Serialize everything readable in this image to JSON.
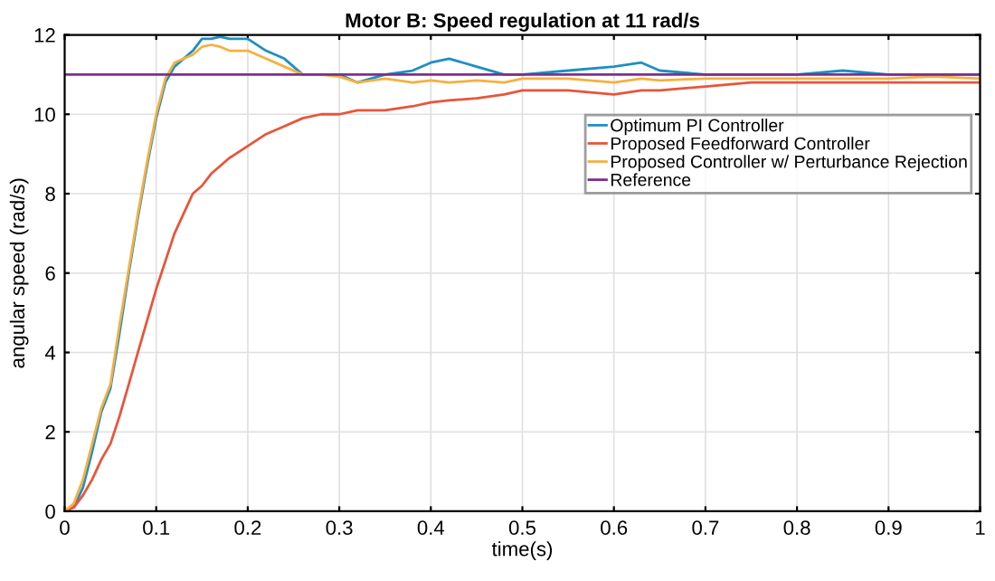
{
  "chart_data": {
    "type": "line",
    "title": "Motor B: Speed regulation at 11 rad/s",
    "xlabel": "time(s)",
    "ylabel": "angular speed (rad/s)",
    "x": [
      0,
      0.01,
      0.02,
      0.03,
      0.04,
      0.05,
      0.06,
      0.07,
      0.08,
      0.09,
      0.1,
      0.11,
      0.12,
      0.13,
      0.14,
      0.15,
      0.16,
      0.17,
      0.18,
      0.2,
      0.22,
      0.24,
      0.26,
      0.28,
      0.3,
      0.32,
      0.35,
      0.38,
      0.4,
      0.42,
      0.45,
      0.48,
      0.5,
      0.55,
      0.6,
      0.63,
      0.65,
      0.7,
      0.75,
      0.8,
      0.85,
      0.9,
      0.95,
      1.0
    ],
    "series": [
      {
        "name": "Optimum PI Controller",
        "color": "#1f8fbf",
        "values": [
          0,
          0.1,
          0.6,
          1.5,
          2.5,
          3.1,
          4.5,
          6.0,
          7.4,
          8.7,
          9.9,
          10.8,
          11.2,
          11.4,
          11.6,
          11.9,
          11.9,
          11.95,
          11.9,
          11.9,
          11.6,
          11.4,
          11.0,
          11.0,
          11.0,
          10.8,
          11.0,
          11.1,
          11.3,
          11.4,
          11.2,
          11.0,
          11.0,
          11.1,
          11.2,
          11.3,
          11.1,
          11.0,
          11.0,
          11.0,
          11.1,
          11.0,
          11.0,
          11.0
        ]
      },
      {
        "name": "Proposed Feedforward Controller",
        "color": "#e8553a",
        "values": [
          0,
          0.1,
          0.4,
          0.8,
          1.3,
          1.7,
          2.4,
          3.2,
          4.0,
          4.8,
          5.6,
          6.3,
          7.0,
          7.5,
          8.0,
          8.2,
          8.5,
          8.7,
          8.9,
          9.2,
          9.5,
          9.7,
          9.9,
          10.0,
          10.0,
          10.1,
          10.1,
          10.2,
          10.3,
          10.35,
          10.4,
          10.5,
          10.6,
          10.6,
          10.5,
          10.6,
          10.6,
          10.7,
          10.8,
          10.8,
          10.8,
          10.8,
          10.8,
          10.8
        ]
      },
      {
        "name": "Proposed Controller w/ Perturbance Rejection",
        "color": "#f5b041",
        "values": [
          0,
          0.2,
          0.8,
          1.7,
          2.6,
          3.2,
          4.7,
          6.1,
          7.5,
          8.8,
          10.0,
          10.9,
          11.3,
          11.4,
          11.5,
          11.7,
          11.75,
          11.7,
          11.6,
          11.6,
          11.4,
          11.2,
          11.0,
          11.0,
          10.95,
          10.8,
          10.9,
          10.8,
          10.85,
          10.8,
          10.85,
          10.8,
          10.9,
          10.9,
          10.8,
          10.9,
          10.85,
          10.9,
          10.9,
          10.9,
          10.9,
          10.9,
          10.95,
          10.9
        ]
      },
      {
        "name": "Reference",
        "color": "#7e2f8e",
        "x": [
          0,
          1
        ],
        "values": [
          11,
          11
        ]
      }
    ],
    "xlim": [
      0,
      1
    ],
    "ylim": [
      0,
      12
    ],
    "xticks": [
      0,
      0.1,
      0.2,
      0.3,
      0.4,
      0.5,
      0.6,
      0.7,
      0.8,
      0.9,
      1
    ],
    "yticks": [
      0,
      2,
      4,
      6,
      8,
      10,
      12
    ],
    "grid": true,
    "legend": "top right"
  }
}
